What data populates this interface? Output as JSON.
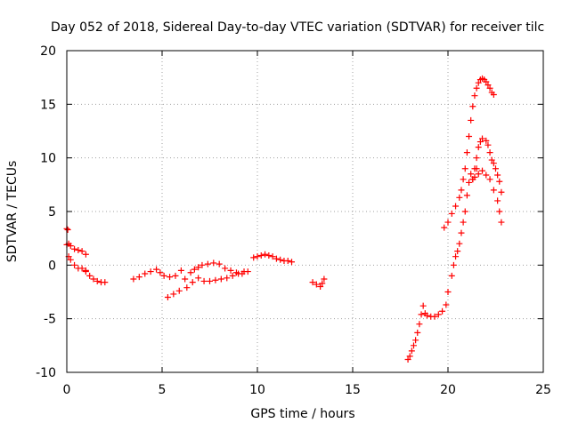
{
  "chart_data": {
    "type": "scatter",
    "title": "Day 052 of 2018, Sidereal Day-to-day VTEC variation (SDTVAR) for receiver tilc",
    "xlabel": "GPS time / hours",
    "ylabel": "SDTVAR / TECUs",
    "xlim": [
      0,
      25
    ],
    "ylim": [
      -10,
      20
    ],
    "xticks": [
      0,
      5,
      10,
      15,
      20,
      25
    ],
    "yticks": [
      -10,
      -5,
      0,
      5,
      10,
      15,
      20
    ],
    "grid": true,
    "marker": "+",
    "color": "#ff0000",
    "series": [
      {
        "x": [
          0.0,
          0.05,
          0.1,
          0.1,
          0.2,
          0.4,
          0.6,
          0.8,
          1.0,
          1.0,
          1.2,
          1.4,
          1.6,
          1.8,
          2.0,
          0.0,
          0.2,
          0.4,
          0.6,
          0.8,
          1.0
        ],
        "y": [
          3.4,
          3.3,
          2.0,
          0.8,
          0.5,
          0.0,
          -0.3,
          -0.3,
          -0.6,
          -0.5,
          -1.0,
          -1.3,
          -1.5,
          -1.6,
          -1.6,
          1.9,
          1.8,
          1.5,
          1.4,
          1.3,
          1.0
        ]
      },
      {
        "x": [
          3.5,
          3.8,
          4.1,
          4.4,
          4.7,
          4.9,
          5.1,
          5.4,
          5.7,
          6.0,
          5.9,
          5.6,
          5.3,
          6.2,
          6.5,
          6.7,
          6.9,
          7.1,
          7.4,
          7.7,
          8.0,
          8.3,
          8.6,
          8.9,
          9.2,
          9.5,
          6.3,
          6.6,
          6.9,
          7.2,
          7.5,
          7.8,
          8.1,
          8.4,
          8.7,
          9.0,
          9.3
        ],
        "y": [
          -1.3,
          -1.1,
          -0.8,
          -0.6,
          -0.4,
          -0.7,
          -1.0,
          -1.1,
          -1.0,
          -0.5,
          -2.4,
          -2.7,
          -3.0,
          -1.3,
          -0.7,
          -0.4,
          -0.2,
          0.0,
          0.1,
          0.2,
          0.1,
          -0.3,
          -0.5,
          -0.7,
          -0.8,
          -0.6,
          -2.1,
          -1.6,
          -1.2,
          -1.5,
          -1.5,
          -1.4,
          -1.3,
          -1.2,
          -1.0,
          -0.8,
          -0.6
        ]
      },
      {
        "x": [
          9.8,
          10.0,
          10.2,
          10.4,
          10.6,
          10.8,
          11.0,
          11.2,
          11.4,
          11.6,
          11.8
        ],
        "y": [
          0.7,
          0.8,
          0.9,
          1.0,
          0.9,
          0.8,
          0.6,
          0.5,
          0.4,
          0.4,
          0.3
        ]
      },
      {
        "x": [
          12.9,
          13.1,
          13.3,
          13.4,
          13.5
        ],
        "y": [
          -1.6,
          -1.8,
          -2.0,
          -1.7,
          -1.3
        ]
      },
      {
        "x": [
          17.9,
          18.0,
          18.1,
          18.2,
          18.3,
          18.4,
          18.5,
          18.6,
          18.7,
          18.8,
          18.9,
          19.1,
          19.3,
          19.5,
          19.7,
          19.9,
          20.0,
          20.2,
          20.3,
          20.4,
          20.5,
          20.6,
          20.7,
          20.8,
          20.9,
          21.0,
          21.1,
          21.2,
          21.3,
          21.4,
          21.5,
          21.6,
          21.8,
          22.0,
          22.2,
          22.4,
          22.6,
          22.7,
          22.8
        ],
        "y": [
          -8.8,
          -8.5,
          -8.0,
          -7.5,
          -7.0,
          -6.3,
          -5.5,
          -4.6,
          -3.8,
          -4.5,
          -4.7,
          -4.8,
          -4.8,
          -4.6,
          -4.3,
          -3.7,
          -2.5,
          -1.0,
          0.0,
          0.8,
          1.3,
          2.0,
          3.0,
          4.0,
          5.0,
          6.5,
          7.7,
          8.5,
          8.0,
          8.2,
          9.0,
          8.5,
          8.8,
          8.4,
          8.0,
          7.0,
          6.0,
          5.0,
          4.0
        ]
      },
      {
        "x": [
          19.8,
          20.0,
          20.2,
          20.4,
          20.6,
          20.7,
          20.8,
          20.9,
          21.0,
          21.1,
          21.2,
          21.3,
          21.4,
          21.5,
          21.6,
          21.7,
          21.8,
          21.9,
          22.0,
          22.1,
          22.2,
          22.3,
          22.4
        ],
        "y": [
          3.5,
          4.0,
          4.8,
          5.5,
          6.3,
          7.0,
          8.0,
          9.0,
          10.5,
          12.0,
          13.5,
          14.8,
          15.8,
          16.5,
          17.0,
          17.3,
          17.4,
          17.3,
          17.1,
          16.8,
          16.5,
          16.1,
          15.9
        ]
      },
      {
        "x": [
          21.3,
          21.4,
          21.5,
          21.6,
          21.7,
          21.8,
          22.0,
          22.1,
          22.2,
          22.3,
          22.4,
          22.5,
          22.6,
          22.7,
          22.8
        ],
        "y": [
          8.0,
          9.0,
          10.0,
          11.0,
          11.5,
          11.8,
          11.6,
          11.2,
          10.5,
          9.8,
          9.5,
          9.0,
          8.4,
          7.8,
          6.8
        ]
      }
    ]
  }
}
